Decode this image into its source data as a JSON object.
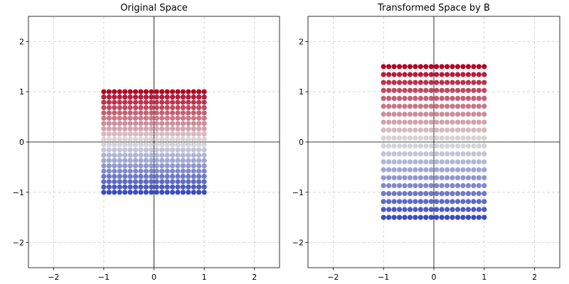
{
  "chart_data": [
    {
      "type": "scatter",
      "title": "Original Space",
      "xlim": [
        -2.5,
        2.5
      ],
      "ylim": [
        -2.5,
        2.5
      ],
      "xticks": [
        -2,
        -1,
        0,
        1,
        2
      ],
      "yticks": [
        -2,
        -1,
        0,
        1,
        2
      ],
      "xtick_labels": [
        "−2",
        "−1",
        "0",
        "1",
        "2"
      ],
      "ytick_labels": [
        "−2",
        "−1",
        "0",
        "1",
        "2"
      ],
      "grid": true,
      "grid_style": "dashed",
      "axes_lines_at_zero": true,
      "colormap": "coolwarm (color by y)",
      "points_grid": {
        "x_range": [
          -1,
          1
        ],
        "y_range": [
          -1,
          1
        ],
        "nx": 20,
        "ny": 20
      }
    },
    {
      "type": "scatter",
      "title": "Transformed Space by B",
      "xlim": [
        -2.5,
        2.5
      ],
      "ylim": [
        -2.5,
        2.5
      ],
      "xticks": [
        -2,
        -1,
        0,
        1,
        2
      ],
      "yticks": [
        -2,
        -1,
        0,
        1,
        2
      ],
      "xtick_labels": [
        "−2",
        "−1",
        "0",
        "1",
        "2"
      ],
      "ytick_labels": [
        "−2",
        "−1",
        "0",
        "1",
        "2"
      ],
      "grid": true,
      "grid_style": "dashed",
      "axes_lines_at_zero": true,
      "colormap": "coolwarm (color by y)",
      "points_grid": {
        "x_range": [
          -1,
          1
        ],
        "y_range": [
          -1.5,
          1.5
        ],
        "nx": 20,
        "ny": 20
      }
    }
  ],
  "colors": {
    "low": "#3b4cc0",
    "mid": "#dddcdc",
    "high": "#b40426",
    "grid": "#d0d0d0",
    "axis_line": "#000000",
    "frame": "#000000"
  }
}
